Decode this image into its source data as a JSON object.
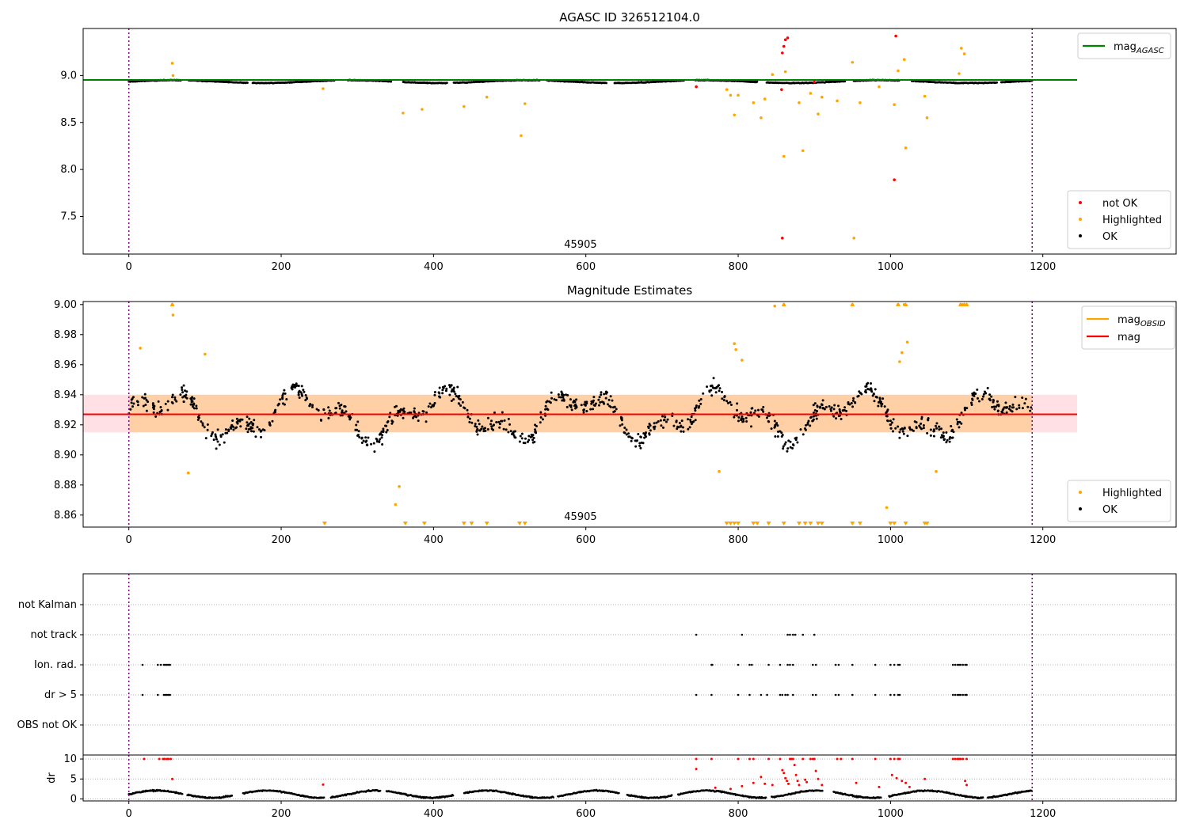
{
  "chart_data": [
    {
      "type": "scatter",
      "title": "AGASC ID 326512104.0",
      "xlabel": "",
      "ylabel": "",
      "xlim": [
        -60,
        1375
      ],
      "ylim": [
        7.1,
        9.5
      ],
      "xticks": [
        "0",
        "200",
        "400",
        "600",
        "800",
        "1000",
        "1200"
      ],
      "yticks": [
        "7.5",
        "8.0",
        "8.5",
        "9.0"
      ],
      "annotation": "45905",
      "observation_bounds": [
        0,
        1186
      ],
      "reference_lines": [
        {
          "name": "mag_AGASC",
          "y": 8.953,
          "x_range": [
            -60,
            1245
          ],
          "color": "#008000"
        }
      ],
      "legend_lines": [
        {
          "label": "mag",
          "sub": "AGASC",
          "color": "#008000"
        }
      ],
      "legend_points": [
        {
          "label": "not OK",
          "color": "#ff0000"
        },
        {
          "label": "Highlighted",
          "color": "#ffa500"
        },
        {
          "label": "OK",
          "color": "#000000"
        }
      ],
      "series": [
        {
          "name": "not OK",
          "color": "#ff0000",
          "points": [
            [
              858,
              9.24
            ],
            [
              860,
              9.31
            ],
            [
              862,
              9.38
            ],
            [
              865,
              9.4
            ],
            [
              857,
              8.85
            ],
            [
              858,
              7.27
            ],
            [
              1007,
              9.42
            ],
            [
              1005,
              7.89
            ],
            [
              745,
              8.88
            ],
            [
              900,
              8.93
            ]
          ]
        },
        {
          "name": "Highlighted",
          "color": "#ffa500",
          "points": [
            [
              57,
              9.13
            ],
            [
              58,
              9.0
            ],
            [
              255,
              8.86
            ],
            [
              360,
              8.6
            ],
            [
              385,
              8.64
            ],
            [
              440,
              8.67
            ],
            [
              470,
              8.77
            ],
            [
              515,
              8.36
            ],
            [
              520,
              8.7
            ],
            [
              785,
              8.85
            ],
            [
              790,
              8.79
            ],
            [
              795,
              8.58
            ],
            [
              800,
              8.79
            ],
            [
              820,
              8.71
            ],
            [
              830,
              8.55
            ],
            [
              835,
              8.75
            ],
            [
              845,
              9.01
            ],
            [
              860,
              8.14
            ],
            [
              862,
              9.04
            ],
            [
              885,
              8.2
            ],
            [
              880,
              8.71
            ],
            [
              895,
              8.81
            ],
            [
              905,
              8.59
            ],
            [
              910,
              8.77
            ],
            [
              930,
              8.73
            ],
            [
              950,
              9.14
            ],
            [
              952,
              7.27
            ],
            [
              960,
              8.71
            ],
            [
              985,
              8.88
            ],
            [
              1010,
              9.05
            ],
            [
              1018,
              9.17
            ],
            [
              1020,
              8.23
            ],
            [
              1045,
              8.78
            ],
            [
              1048,
              8.55
            ],
            [
              1090,
              9.02
            ],
            [
              1093,
              9.29
            ],
            [
              1097,
              9.23
            ],
            [
              1005,
              8.69
            ]
          ]
        }
      ]
    },
    {
      "type": "scatter",
      "title": "Magnitude Estimates",
      "xlabel": "",
      "ylabel": "",
      "xlim": [
        -60,
        1375
      ],
      "ylim": [
        8.852,
        9.002
      ],
      "xticks": [
        "0",
        "200",
        "400",
        "600",
        "800",
        "1000",
        "1200"
      ],
      "yticks": [
        "8.86",
        "8.88",
        "8.90",
        "8.92",
        "8.94",
        "8.96",
        "8.98",
        "9.00"
      ],
      "annotation": "45905",
      "observation_bounds": [
        0,
        1186
      ],
      "mag_value": 8.927,
      "mag_band": [
        8.915,
        8.94
      ],
      "mag_obsid_band": [
        8.915,
        8.94
      ],
      "legend_lines": [
        {
          "label": "mag",
          "sub": "OBSID",
          "color": "#ffa500"
        },
        {
          "label": "mag",
          "sub": "",
          "color": "#ff0000"
        }
      ],
      "legend_points": [
        {
          "label": "Highlighted",
          "color": "#ffa500"
        },
        {
          "label": "OK",
          "color": "#000000"
        }
      ],
      "highlighted_points": [
        [
          15,
          8.971
        ],
        [
          57,
          9.0
        ],
        [
          58,
          8.993
        ],
        [
          78,
          8.888
        ],
        [
          100,
          8.967
        ],
        [
          350,
          8.867
        ],
        [
          355,
          8.879
        ],
        [
          775,
          8.889
        ],
        [
          795,
          8.974
        ],
        [
          797,
          8.97
        ],
        [
          805,
          8.963
        ],
        [
          848,
          8.999
        ],
        [
          860,
          9.0
        ],
        [
          950,
          9.0
        ],
        [
          995,
          8.865
        ],
        [
          1010,
          9.0
        ],
        [
          1012,
          8.962
        ],
        [
          1015,
          8.968
        ],
        [
          1018,
          9.0
        ],
        [
          1022,
          8.975
        ],
        [
          1060,
          8.889
        ],
        [
          1092,
          9.0
        ],
        [
          1095,
          9.0
        ],
        [
          1100,
          9.0
        ]
      ],
      "clipped_low_x": [
        257,
        363,
        388,
        440,
        450,
        470,
        513,
        520,
        785,
        790,
        795,
        800,
        820,
        825,
        840,
        860,
        880,
        888,
        895,
        905,
        910,
        950,
        960,
        1000,
        1005,
        1020,
        1045,
        1048
      ],
      "clipped_high_x": [
        57,
        860,
        950,
        1010,
        1020,
        1092,
        1097,
        1100
      ]
    },
    {
      "type": "scatter",
      "title": "",
      "xlabel": "",
      "ylabel": "",
      "xlim": [
        -60,
        1375
      ],
      "xticks": [],
      "flag_labels": [
        "not Kalman",
        "not track",
        "Ion. rad.",
        "dr > 5",
        "OBS not OK"
      ],
      "flags": {
        "not Kalman": [],
        "not track": [
          745,
          805,
          865,
          868,
          872,
          875,
          885,
          900
        ],
        "Ion. rad.": [
          18,
          38,
          42,
          46,
          48,
          50,
          52,
          54,
          765,
          766,
          800,
          815,
          818,
          840,
          855,
          865,
          868,
          872,
          898,
          902,
          928,
          932,
          950,
          980,
          1000,
          1005,
          1010,
          1012,
          1082,
          1085,
          1088,
          1090,
          1092,
          1095,
          1098,
          1100
        ],
        "dr > 5": [
          18,
          38,
          46,
          48,
          50,
          52,
          54,
          745,
          765,
          800,
          815,
          830,
          838,
          855,
          858,
          862,
          865,
          872,
          898,
          902,
          928,
          932,
          950,
          980,
          1000,
          1005,
          1010,
          1012,
          1082,
          1085,
          1088,
          1090,
          1092,
          1095,
          1098,
          1100
        ],
        "OBS not OK": []
      }
    },
    {
      "type": "scatter",
      "title": "",
      "xlabel": "",
      "ylabel": "dr",
      "xlim": [
        -60,
        1375
      ],
      "ylim": [
        -0.5,
        11.0
      ],
      "xticks": [
        "0",
        "200",
        "400",
        "600",
        "800",
        "1000",
        "1200"
      ],
      "yticks": [
        "0",
        "5",
        "10"
      ],
      "high_points": [
        [
          20,
          10
        ],
        [
          40,
          10
        ],
        [
          45,
          10
        ],
        [
          47,
          10
        ],
        [
          50,
          10
        ],
        [
          52,
          10
        ],
        [
          55,
          10
        ],
        [
          57,
          5.0
        ],
        [
          255,
          3.6
        ],
        [
          745,
          10
        ],
        [
          745,
          7.5
        ],
        [
          765,
          10
        ],
        [
          770,
          2.8
        ],
        [
          790,
          2.5
        ],
        [
          800,
          10
        ],
        [
          805,
          3.2
        ],
        [
          815,
          10
        ],
        [
          820,
          10
        ],
        [
          820,
          4.0
        ],
        [
          830,
          5.5
        ],
        [
          835,
          3.8
        ],
        [
          840,
          10
        ],
        [
          845,
          3.5
        ],
        [
          855,
          10
        ],
        [
          858,
          7.2
        ],
        [
          860,
          6.5
        ],
        [
          862,
          5.2
        ],
        [
          864,
          4.5
        ],
        [
          866,
          3.8
        ],
        [
          868,
          10
        ],
        [
          870,
          10
        ],
        [
          872,
          10
        ],
        [
          874,
          8.5
        ],
        [
          876,
          6.0
        ],
        [
          878,
          4.5
        ],
        [
          880,
          3.5
        ],
        [
          885,
          10
        ],
        [
          888,
          4.8
        ],
        [
          890,
          4.2
        ],
        [
          895,
          10
        ],
        [
          898,
          10
        ],
        [
          900,
          10
        ],
        [
          902,
          7.0
        ],
        [
          905,
          5.0
        ],
        [
          910,
          3.5
        ],
        [
          930,
          10
        ],
        [
          935,
          10
        ],
        [
          950,
          10
        ],
        [
          955,
          4.0
        ],
        [
          980,
          10
        ],
        [
          985,
          3.0
        ],
        [
          1000,
          10
        ],
        [
          1002,
          6.0
        ],
        [
          1005,
          10
        ],
        [
          1008,
          5.2
        ],
        [
          1010,
          10
        ],
        [
          1012,
          10
        ],
        [
          1015,
          4.5
        ],
        [
          1020,
          4.0
        ],
        [
          1025,
          3.0
        ],
        [
          1045,
          5.0
        ],
        [
          1082,
          10
        ],
        [
          1085,
          10
        ],
        [
          1088,
          10
        ],
        [
          1090,
          10
        ],
        [
          1092,
          10
        ],
        [
          1095,
          10
        ],
        [
          1098,
          4.5
        ],
        [
          1100,
          10
        ],
        [
          1100,
          3.5
        ]
      ]
    }
  ]
}
